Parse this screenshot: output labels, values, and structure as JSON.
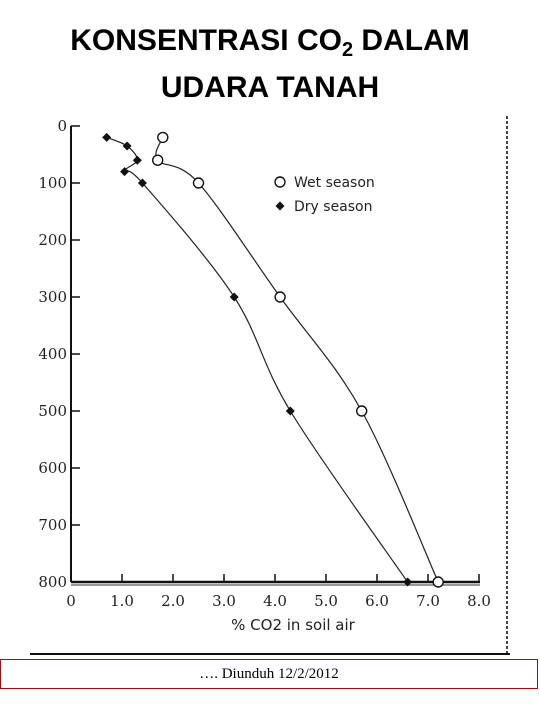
{
  "slide": {
    "title_part1": "KONSENTRASI CO",
    "title_sub": "2",
    "title_part2": " DALAM",
    "title_line2": "UDARA TANAH"
  },
  "footer": {
    "text": "…. Diunduh  12/2/2012"
  },
  "chart_data": {
    "type": "line",
    "title": "",
    "xlabel": "% CO2 in soil air",
    "ylabel": "",
    "xlim": [
      0,
      8
    ],
    "ylim": [
      800,
      0
    ],
    "y_inverted": true,
    "x_tick_labels": [
      "0",
      "1.0",
      "2.0",
      "3.0",
      "4.0",
      "5.0",
      "6.0",
      "7.0",
      "8.0"
    ],
    "y_tick_labels": [
      "0",
      "100",
      "200",
      "300",
      "400",
      "500",
      "600",
      "700",
      "800"
    ],
    "legend_position": "top-right",
    "series": [
      {
        "name": "Wet season",
        "marker": "open-circle",
        "x": [
          1.8,
          1.7,
          2.5,
          4.1,
          5.7,
          7.2
        ],
        "y": [
          20,
          60,
          100,
          300,
          500,
          800
        ]
      },
      {
        "name": "Dry season",
        "marker": "filled-diamond",
        "x": [
          0.7,
          1.1,
          1.3,
          1.05,
          1.4,
          3.2,
          4.3,
          6.6
        ],
        "y": [
          20,
          35,
          60,
          80,
          100,
          300,
          500,
          800
        ]
      }
    ]
  }
}
